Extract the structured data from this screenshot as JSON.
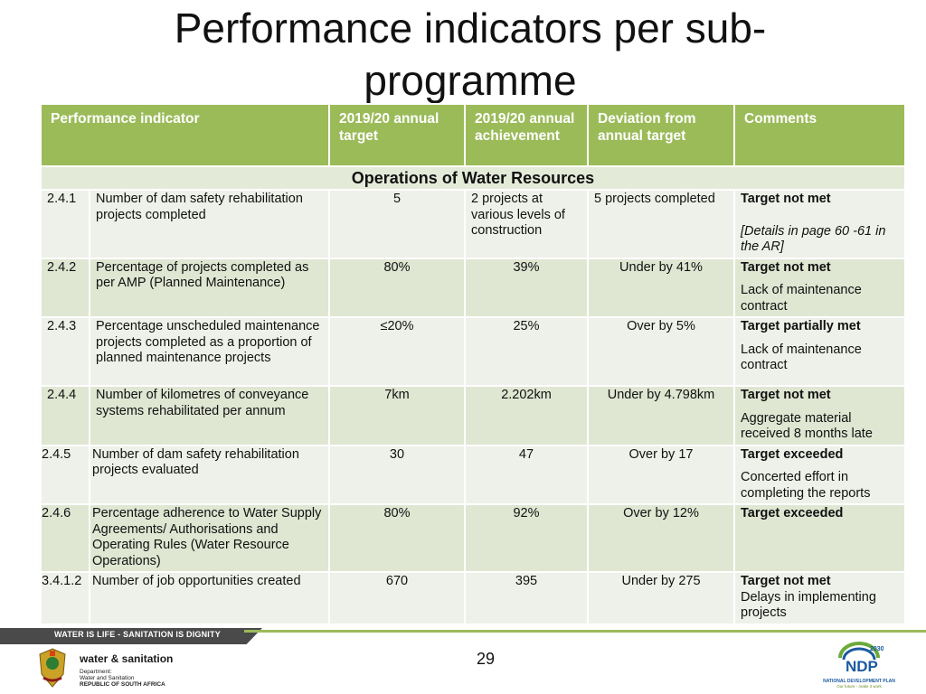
{
  "title": "Performance indicators per sub-programme",
  "table": {
    "headers": [
      "Performance indicator",
      "2019/20 annual target",
      "2019/20 annual achievement",
      "Deviation from annual target",
      "Comments"
    ],
    "section": "Operations of Water Resources",
    "rows": [
      {
        "code": "2.4.1",
        "indicator": "Number of dam safety rehabilitation projects completed",
        "target": "5",
        "achievement": "2 projects at various levels of construction",
        "deviation": "5 projects completed",
        "status": "Target not  met",
        "detail": "[Details in page 60 -61 in the AR]"
      },
      {
        "code": "2.4.2",
        "indicator": "Percentage of projects completed as per AMP (Planned Maintenance)",
        "target": "80%",
        "achievement": "39%",
        "deviation": "Under by 41%",
        "status": "Target not met",
        "detail": "Lack of maintenance contract"
      },
      {
        "code": "2.4.3",
        "indicator": "Percentage unscheduled maintenance projects completed as a proportion of planned maintenance projects",
        "target": "≤20%",
        "achievement": "25%",
        "deviation": "Over by 5%",
        "status": "Target  partially  met",
        "detail": "Lack of maintenance contract"
      },
      {
        "code": "2.4.4",
        "indicator": "Number of kilometres of conveyance systems rehabilitated per annum",
        "target": "7km",
        "achievement": "2.202km",
        "deviation": "Under by 4.798km",
        "status": "Target not  met",
        "detail": "Aggregate material received 8 months late"
      },
      {
        "code": "2.4.5",
        "indicator": "Number of dam safety rehabilitation projects evaluated",
        "target": "30",
        "achievement": "47",
        "deviation": "Over by 17",
        "status": "Target exceeded",
        "detail": "Concerted effort in completing the reports"
      },
      {
        "code": "2.4.6",
        "indicator": "Percentage adherence to Water Supply Agreements/ Authorisations and Operating Rules (Water Resource Operations)",
        "target": "80%",
        "achievement": "92%",
        "deviation": "Over by 12%",
        "status": "Target exceeded",
        "detail": ""
      },
      {
        "code": "3.4.1.2",
        "indicator": "Number of job opportunities created",
        "target": "670",
        "achievement": "395",
        "deviation": "Under by 275",
        "status": "Target not met",
        "detail": "Delays in implementing projects"
      }
    ]
  },
  "footer": {
    "banner": "WATER IS LIFE - SANITATION IS DIGNITY",
    "page_number": "29",
    "brand": "water & sanitation",
    "dept_line1": "Department:",
    "dept_line2": "Water and Sanitation",
    "dept_line3": "REPUBLIC OF SOUTH AFRICA",
    "ndp_year": "2030",
    "ndp_label": "NDP",
    "ndp_caption": "NATIONAL DEVELOPMENT PLAN",
    "ndp_tagline": "Our future - make it work"
  },
  "colors": {
    "header_green": "#9bbb59",
    "row_light": "#eef1e9",
    "row_dark": "#dfe6d2",
    "banner_dark": "#4a4a4a"
  }
}
